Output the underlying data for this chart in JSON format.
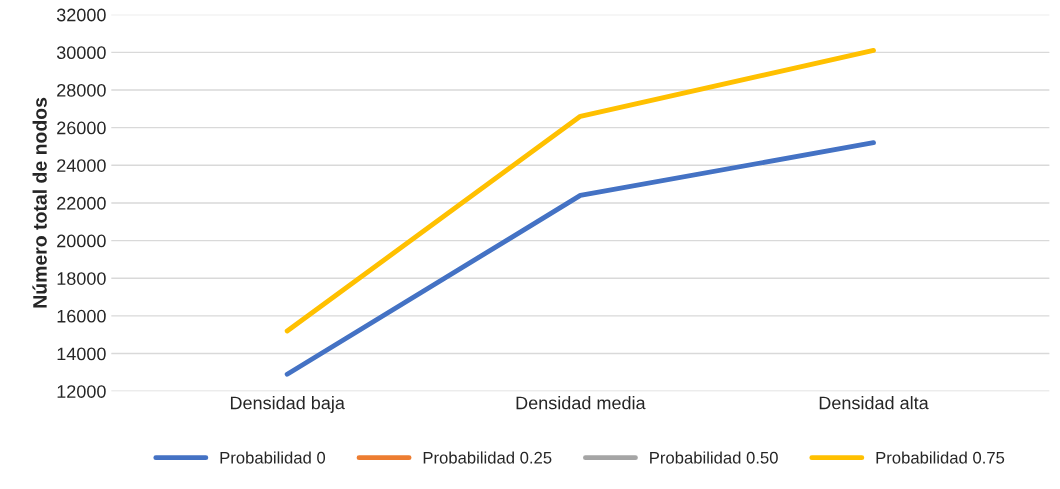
{
  "chart_data": {
    "type": "line",
    "ylabel": "Número total de nodos",
    "categories": [
      "Densidad baja",
      "Densidad media",
      "Densidad alta"
    ],
    "series": [
      {
        "name": "Probabilidad 0",
        "color": "#4472c4",
        "values": [
          12900,
          22400,
          25200
        ]
      },
      {
        "name": "Probabilidad 0.25",
        "color": "#ed7d31",
        "values": [
          null,
          null,
          null
        ]
      },
      {
        "name": "Probabilidad 0.50",
        "color": "#a5a5a5",
        "values": [
          null,
          null,
          null
        ]
      },
      {
        "name": "Probabilidad 0.75",
        "color": "#ffc000",
        "values": [
          15200,
          26600,
          30100
        ]
      }
    ],
    "ylim": [
      12000,
      32000
    ],
    "yticks": [
      12000,
      14000,
      16000,
      18000,
      20000,
      22000,
      24000,
      26000,
      28000,
      30000,
      32000
    ],
    "grid": "y",
    "legend": "bottom",
    "marker": "none",
    "line_style": "solid"
  }
}
